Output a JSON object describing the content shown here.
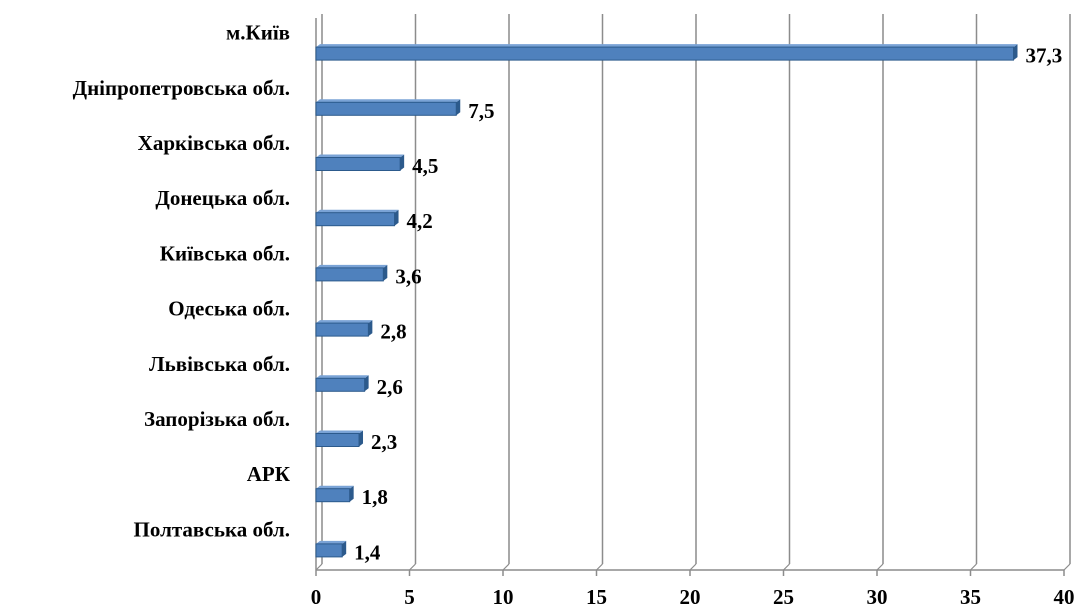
{
  "chart_data": {
    "type": "bar",
    "orientation": "horizontal",
    "categories": [
      "м.Київ",
      "Дніпропетровська обл.",
      "Харківська обл.",
      "Донецька обл.",
      "Київська обл.",
      "Одеська обл.",
      "Львівська обл.",
      "Запорізька обл.",
      "АРК",
      "Полтавська обл."
    ],
    "values": [
      37.3,
      7.5,
      4.5,
      4.2,
      3.6,
      2.8,
      2.6,
      2.3,
      1.8,
      1.4
    ],
    "value_labels": [
      "37,3",
      "7,5",
      "4,5",
      "4,2",
      "3,6",
      "2,8",
      "2,6",
      "2,3",
      "1,8",
      "1,4"
    ],
    "xlim": [
      0,
      40
    ],
    "x_ticks": [
      0,
      5,
      10,
      15,
      20,
      25,
      30,
      35,
      40
    ],
    "grid": "vertical",
    "legend": "none",
    "bar_color": "#4f81bd",
    "bar_edge_color": "#2c5a8c",
    "grid_color": "#8c8c8c"
  }
}
